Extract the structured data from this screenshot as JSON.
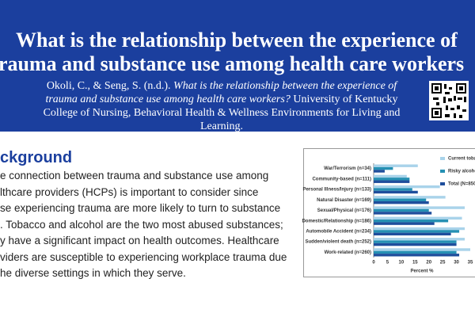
{
  "header": {
    "title_lines": [
      "What is the relationship between the experience of",
      "rauma and substance use among health care workers"
    ]
  },
  "citation": {
    "authors": "Okoli, C., & Seng, S. (n.d.).",
    "work": "What is the relationship between the experience of trauma and substance use among health care workers?",
    "publisher": "University of Kentucky College of Nursing, Behavioral Health & Wellness Environments for Living and Learning."
  },
  "background": {
    "heading": "ckground",
    "lines": [
      "e connection between trauma and substance use among",
      "lthcare providers (HCPs) is important to consider since",
      "se experiencing trauma are more likely to turn to substance",
      ". Tobacco and alcohol are the two most abused substances;",
      "y have a significant impact on health outcomes. Healthcare",
      "viders are susceptible to experiencing workplace trauma due",
      "he diverse settings in which they serve."
    ]
  },
  "chart_data": {
    "type": "hbar",
    "x_label": "Percent %",
    "categories": [
      "War/Terrorism (n=34)",
      "Community-based (n=111)",
      "Personal Illness/Injury (n=133)",
      "Natural Disaster (n=169)",
      "Sexual/Physical (n=176)",
      "Domestic/Relationship (n=186)",
      "Automobile Accident (n=234)",
      "Sudden/violent death (n=252)",
      "Work-related (n=260)"
    ],
    "series": [
      {
        "name": "Current toba",
        "color": "#a9d3ea",
        "values": [
          16,
          12,
          24,
          26,
          33,
          32,
          33,
          33,
          35
        ]
      },
      {
        "name": "Risky alcoho",
        "color": "#2590b3",
        "values": [
          7,
          13,
          14,
          19,
          20,
          27,
          31,
          30,
          30
        ]
      },
      {
        "name": "Total (N=850",
        "color": "#1f4e9c",
        "values": [
          4,
          13,
          16,
          20,
          21,
          22,
          28,
          30,
          31
        ]
      }
    ],
    "xlim": [
      0,
      35
    ],
    "xticks": [
      0,
      5,
      10,
      15,
      20,
      25,
      30,
      35
    ]
  }
}
